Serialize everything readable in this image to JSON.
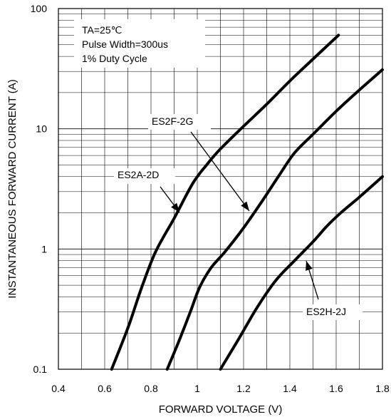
{
  "chart_data": {
    "type": "line",
    "title": "",
    "xlabel": "FORWARD VOLTAGE (V)",
    "ylabel": "INSTANTANEOUS FORWARD CURRENT (A)",
    "xlim": [
      0.4,
      1.8
    ],
    "ylim": [
      0.1,
      100
    ],
    "yscale": "log",
    "grid": true,
    "x_ticks": [
      "0.4",
      "0.6",
      "0.8",
      "1",
      "1.2",
      "1.4",
      "1.6",
      "1.8"
    ],
    "y_ticks": [
      "0.1",
      "1",
      "10",
      "100"
    ],
    "annotation": [
      "TA=25℃",
      "Pulse Width=300us",
      "1% Duty Cycle"
    ],
    "series": [
      {
        "name": "ES2A-2D",
        "x": [
          0.63,
          0.7,
          0.76,
          0.82,
          0.9,
          0.98,
          1.04,
          1.1,
          1.2,
          1.3,
          1.4,
          1.5,
          1.61
        ],
        "y": [
          0.1,
          0.22,
          0.48,
          0.95,
          1.8,
          3.5,
          5.0,
          6.8,
          10.5,
          16.0,
          25.0,
          38.0,
          60.0
        ]
      },
      {
        "name": "ES2F-2G",
        "x": [
          0.87,
          0.92,
          0.97,
          1.01,
          1.06,
          1.12,
          1.2,
          1.28,
          1.35,
          1.42,
          1.5,
          1.6,
          1.7,
          1.8
        ],
        "y": [
          0.1,
          0.17,
          0.3,
          0.48,
          0.7,
          0.95,
          1.5,
          2.5,
          4.0,
          6.3,
          9.0,
          14.0,
          21.0,
          31.0
        ]
      },
      {
        "name": "ES2H-2J",
        "x": [
          1.1,
          1.18,
          1.26,
          1.34,
          1.42,
          1.5,
          1.56,
          1.62,
          1.7,
          1.8
        ],
        "y": [
          0.1,
          0.18,
          0.33,
          0.55,
          0.8,
          1.15,
          1.55,
          2.0,
          2.7,
          4.0
        ]
      }
    ]
  }
}
